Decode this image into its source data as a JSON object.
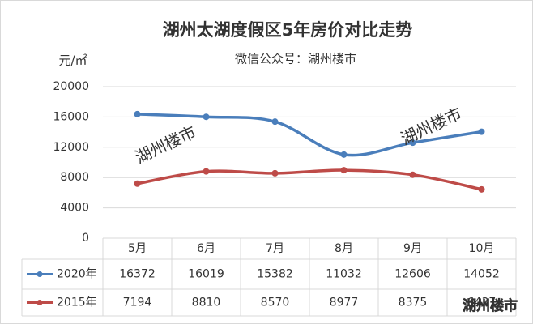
{
  "chart_data": {
    "type": "line",
    "title": "湖州太湖度假区5年房价对比走势",
    "subtitle": "微信公众号：湖州楼市",
    "y_unit": "元/㎡",
    "categories": [
      "5月",
      "6月",
      "7月",
      "8月",
      "9月",
      "10月"
    ],
    "series": [
      {
        "name": "2020年",
        "color": "#4a7ebb",
        "values": [
          16372,
          16019,
          15382,
          11032,
          12606,
          14052
        ]
      },
      {
        "name": "2015年",
        "color": "#be4b48",
        "values": [
          7194,
          8810,
          8570,
          8977,
          8375,
          6437
        ]
      }
    ],
    "ylim": [
      0,
      20000
    ],
    "yticks": [
      0,
      4000,
      8000,
      12000,
      16000,
      20000
    ],
    "grid": true,
    "smooth": true
  },
  "watermarks": [
    "湖州楼市",
    "湖州楼市",
    "湖州楼市"
  ]
}
